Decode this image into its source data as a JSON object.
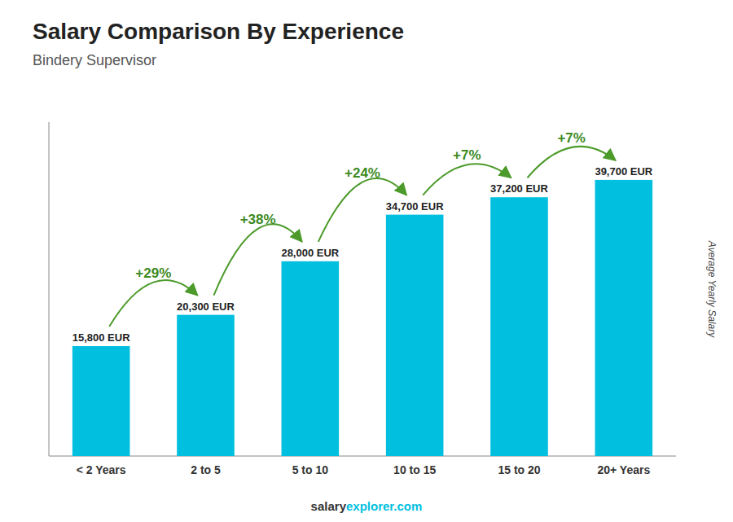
{
  "chart_data": {
    "type": "bar",
    "title": "Salary Comparison By Experience",
    "subtitle": "Bindery Supervisor",
    "ylabel": "Average Yearly Salary",
    "categories": [
      "< 2 Years",
      "2 to 5",
      "5 to 10",
      "10 to 15",
      "15 to 20",
      "20+ Years"
    ],
    "values": [
      15800,
      20300,
      28000,
      34700,
      37200,
      39700
    ],
    "value_labels": [
      "15,800 EUR",
      "20,300 EUR",
      "28,000 EUR",
      "34,700 EUR",
      "37,200 EUR",
      "39,700 EUR"
    ],
    "data_labels": true,
    "annotations": [
      null,
      "+29%",
      "+38%",
      "+24%",
      "+7%",
      "+7%"
    ],
    "footer": [
      "salary",
      "explorer.com"
    ],
    "color": "#00BFDF",
    "ylim": [
      0,
      48000
    ],
    "tick_labels": "x",
    "grid": false
  }
}
